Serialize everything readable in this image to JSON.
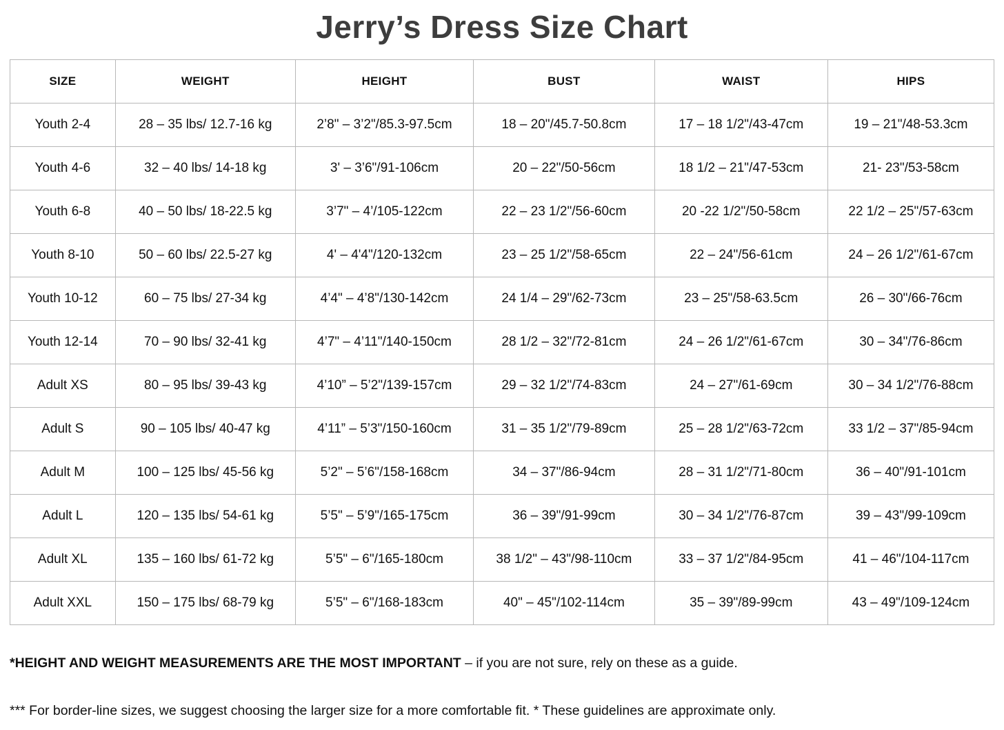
{
  "title": "Jerry’s Dress Size Chart",
  "table": {
    "columns": [
      "SIZE",
      "WEIGHT",
      "HEIGHT",
      "BUST",
      "WAIST",
      "HIPS"
    ],
    "rows": [
      [
        "Youth 2-4",
        "28 – 35 lbs/ 12.7-16 kg",
        "2’8\" – 3’2\"/85.3-97.5cm",
        "18 – 20\"/45.7-50.8cm",
        "17 – 18 1/2\"/43-47cm",
        "19 – 21\"/48-53.3cm"
      ],
      [
        "Youth 4-6",
        "32 – 40 lbs/ 14-18 kg",
        "3' – 3’6\"/91-106cm",
        "20 – 22\"/50-56cm",
        "18 1/2 – 21\"/47-53cm",
        "21- 23\"/53-58cm"
      ],
      [
        "Youth 6-8",
        "40 – 50 lbs/ 18-22.5 kg",
        "3’7\" – 4’/105-122cm",
        "22 – 23 1/2\"/56-60cm",
        "20 -22 1/2\"/50-58cm",
        "22 1/2 – 25\"/57-63cm"
      ],
      [
        "Youth 8-10",
        "50 – 60 lbs/ 22.5-27 kg",
        "4' – 4'4\"/120-132cm",
        "23 – 25 1/2\"/58-65cm",
        "22 – 24\"/56-61cm",
        "24 – 26 1/2\"/61-67cm"
      ],
      [
        "Youth 10-12",
        "60 – 75 lbs/ 27-34 kg",
        "4’4\" – 4’8\"/130-142cm",
        "24 1/4 – 29\"/62-73cm",
        "23 – 25\"/58-63.5cm",
        "26 – 30\"/66-76cm"
      ],
      [
        "Youth 12-14",
        "70 – 90 lbs/ 32-41 kg",
        "4’7\" – 4’11\"/140-150cm",
        "28 1/2 – 32\"/72-81cm",
        "24 – 26 1/2\"/61-67cm",
        "30 – 34\"/76-86cm"
      ],
      [
        "Adult XS",
        "80 – 95 lbs/ 39-43 kg",
        "4’10” – 5’2\"/139-157cm",
        "29 – 32 1/2\"/74-83cm",
        "24 – 27\"/61-69cm",
        "30 – 34 1/2\"/76-88cm"
      ],
      [
        "Adult S",
        "90 – 105 lbs/ 40-47 kg",
        "4’11” – 5’3\"/150-160cm",
        "31 – 35 1/2\"/79-89cm",
        "25 – 28 1/2\"/63-72cm",
        "33 1/2 – 37\"/85-94cm"
      ],
      [
        "Adult M",
        "100 – 125 lbs/ 45-56 kg",
        "5’2\" – 5’6\"/158-168cm",
        "34 – 37\"/86-94cm",
        "28 – 31 1/2\"/71-80cm",
        "36 – 40\"/91-101cm"
      ],
      [
        "Adult L",
        "120 – 135 lbs/ 54-61 kg",
        "5’5\" – 5’9\"/165-175cm",
        "36 – 39\"/91-99cm",
        "30 – 34 1/2\"/76-87cm",
        "39 – 43\"/99-109cm"
      ],
      [
        "Adult XL",
        "135 – 160 lbs/ 61-72 kg",
        "5’5\" – 6\"/165-180cm",
        "38 1/2\" – 43\"/98-110cm",
        "33 – 37 1/2\"/84-95cm",
        "41 – 46\"/104-117cm"
      ],
      [
        "Adult XXL",
        "150 – 175 lbs/ 68-79 kg",
        "5’5\" – 6\"/168-183cm",
        "40\" – 45\"/102-114cm",
        "35 – 39\"/89-99cm",
        "43 – 49\"/109-124cm"
      ]
    ]
  },
  "footnotes": {
    "note1_bold": "*HEIGHT AND WEIGHT MEASUREMENTS ARE THE MOST IMPORTANT",
    "note1_rest": " – if you are not sure, rely on these as a guide.",
    "note2": "*** For border-line sizes, we suggest choosing the larger size for a more comfortable fit. * These guidelines are approximate only."
  },
  "colors": {
    "title_text": "#3d3d3d",
    "body_text": "#111111",
    "table_border": "#b7b7b7",
    "background": "#ffffff"
  }
}
